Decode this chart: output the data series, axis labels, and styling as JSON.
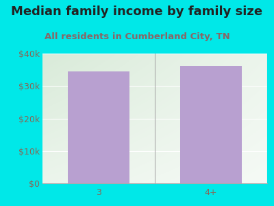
{
  "title": "Median family income by family size",
  "subtitle": "All residents in Cumberland City, TN",
  "categories": [
    "3",
    "4+"
  ],
  "values": [
    34500,
    36200
  ],
  "bar_color": "#b8a0d0",
  "ylim": [
    0,
    40000
  ],
  "yticks": [
    0,
    10000,
    20000,
    30000,
    40000
  ],
  "ytick_labels": [
    "$0",
    "$10k",
    "$20k",
    "$30k",
    "$40k"
  ],
  "title_fontsize": 13,
  "subtitle_fontsize": 9.5,
  "tick_fontsize": 9,
  "background_outer": "#00e8e8",
  "background_inner_top_left": "#d8f0cc",
  "background_inner_bottom_right": "#f8f8f8",
  "title_color": "#222222",
  "subtitle_color": "#886666",
  "tick_color": "#886655"
}
